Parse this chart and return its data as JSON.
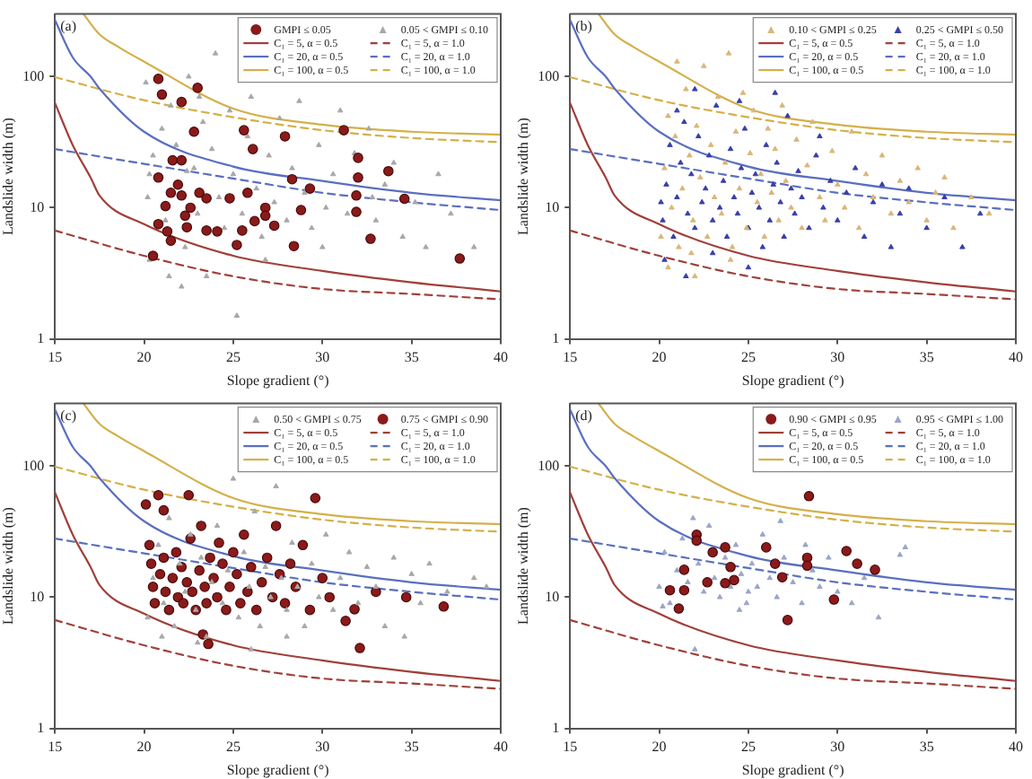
{
  "chart_data": [
    {
      "type": "scatter",
      "annotations": [
        "(a)"
      ],
      "xlabel": "Slope gradient (°)",
      "ylabel": "Landslide width (m)",
      "xlim": [
        15,
        40
      ],
      "xticks": [
        15,
        20,
        25,
        30,
        35,
        40
      ],
      "ylim": [
        1,
        300
      ],
      "yticks": [
        1,
        10,
        100
      ],
      "log": "y",
      "grid": false,
      "legend": "top right",
      "series": [
        {
          "name": "GMPI ≤ 0.05",
          "color": "#8b1a1a",
          "marker": "circle",
          "x": [
            20.8,
            21.0,
            22.1,
            23.0,
            22.8,
            25.6,
            26.1,
            27.9,
            31.2,
            32.0,
            33.7,
            34.6,
            32.0,
            31.9,
            31.9,
            32.7,
            37.7,
            28.3,
            29.3,
            28.8,
            28.4,
            27.3,
            26.8,
            26.8,
            26.2,
            25.8,
            24.8,
            25.5,
            25.2,
            24.1,
            23.5,
            23.1,
            23.5,
            22.6,
            22.3,
            22.1,
            21.9,
            21.6,
            22.1,
            20.8,
            21.2,
            20.8,
            21.3,
            21.5,
            20.5,
            22.4,
            21.5
          ],
          "values": [
            96,
            73,
            64,
            82,
            38,
            39,
            28,
            35,
            39,
            24,
            19,
            11.7,
            17,
            12.4,
            9.3,
            5.8,
            4.1,
            16.5,
            14,
            9.6,
            5.1,
            7.3,
            10,
            8.7,
            7.9,
            13,
            11.8,
            6.7,
            5.2,
            6.6,
            6.7,
            13,
            11.8,
            10,
            8.7,
            12.4,
            15,
            23,
            23,
            17,
            10.3,
            7.5,
            6.6,
            5.6,
            4.3,
            7.1,
            13
          ]
        },
        {
          "name": "0.05 < GMPI ≤ 0.10",
          "color": "#a8a8a8",
          "marker": "triangle",
          "x": [
            20.2,
            20.5,
            20.3,
            21,
            21.2,
            21.5,
            21.8,
            22.4,
            22.3,
            22.5,
            22.8,
            23,
            23.3,
            23.5,
            23.8,
            24,
            24.2,
            24.5,
            24.8,
            25,
            25.2,
            25.5,
            25.8,
            26,
            26.3,
            26.6,
            27,
            27.3,
            27.6,
            28,
            28.3,
            28.7,
            29,
            29.4,
            29.8,
            30.2,
            30.6,
            31,
            31.4,
            31.8,
            32.8,
            32.6,
            33,
            33.5,
            34,
            34.5,
            35.2,
            35.8,
            36.5,
            37.2,
            38.5,
            20.3,
            21.4,
            22.1,
            23.1,
            20.1,
            26.8,
            30
          ],
          "values": [
            12,
            25,
            18,
            40,
            8,
            60,
            30,
            19,
            5,
            100,
            20,
            9,
            45,
            3,
            28,
            150,
            12,
            7,
            55,
            18,
            1.5,
            9,
            35,
            70,
            14,
            6,
            25,
            11,
            48,
            8,
            20,
            65,
            13,
            7,
            30,
            10,
            18,
            55,
            9,
            26,
            12,
            40,
            8,
            15,
            22,
            6,
            11,
            5,
            18,
            9,
            5,
            4,
            3,
            2.5,
            70,
            90,
            4,
            5
          ]
        },
        {
          "type": "line",
          "name": "C₁ = 5, α = 0.5",
          "color": "#a0403a",
          "line_style": "solid",
          "marker": "none",
          "x": [
            15,
            16,
            17,
            17.5,
            20,
            25,
            30,
            35,
            40
          ],
          "values": [
            63,
            30,
            17,
            12.4,
            7.5,
            4.3,
            3.3,
            2.7,
            2.3
          ]
        },
        {
          "type": "line",
          "name": "C₁ = 5, α = 1.0",
          "color": "#a0403a",
          "line_style": "dashed",
          "marker": "none",
          "x": [
            15,
            20,
            25,
            30,
            35,
            40
          ],
          "values": [
            6.7,
            4.3,
            3.0,
            2.4,
            2.2,
            2.0
          ]
        },
        {
          "type": "line",
          "name": "C₁ = 20, α = 0.5",
          "color": "#5a6fc0",
          "line_style": "solid",
          "marker": "none",
          "x": [
            15,
            16,
            17,
            17.5,
            20,
            25,
            30,
            35,
            40
          ],
          "values": [
            270,
            140,
            100,
            81,
            38,
            20.6,
            16,
            13,
            11.4
          ]
        },
        {
          "type": "line",
          "name": "C₁ = 20, α = 1.0",
          "color": "#5a6fc0",
          "line_style": "dashed",
          "marker": "none",
          "x": [
            15,
            20,
            25,
            30,
            35,
            40
          ],
          "values": [
            28,
            21.6,
            16.7,
            13,
            11,
            9.6
          ]
        },
        {
          "type": "line",
          "name": "C₁ = 100, α = 0.5",
          "color": "#d4b04a",
          "line_style": "solid",
          "marker": "none",
          "x": [
            16.6,
            17.5,
            18.5,
            20,
            25,
            30,
            35,
            40
          ],
          "values": [
            300,
            210,
            170,
            130,
            57,
            43,
            38,
            36
          ]
        },
        {
          "type": "line",
          "name": "C₁ = 100, α = 1.0",
          "color": "#d4b04a",
          "line_style": "dashed",
          "marker": "none",
          "x": [
            15,
            20,
            25,
            30,
            35,
            40
          ],
          "values": [
            99,
            66,
            49,
            39,
            34,
            31.6
          ]
        }
      ]
    },
    {
      "type": "scatter",
      "annotations": [
        "(b)"
      ],
      "xlabel": "Slope gradient (°)",
      "ylabel": "Landslide width (m)",
      "xlim": [
        15,
        40
      ],
      "xticks": [
        15,
        20,
        25,
        30,
        35,
        40
      ],
      "ylim": [
        1,
        300
      ],
      "yticks": [
        1,
        10,
        100
      ],
      "log": "y",
      "grid": false,
      "legend": "top right",
      "series": [
        {
          "name": "0.10 < GMPI ≤ 0.25",
          "color": "#d9b77a",
          "marker": "triangle",
          "x": [
            20.1,
            20.3,
            20.5,
            20.7,
            20.9,
            21.1,
            21.3,
            21.5,
            21.7,
            21.9,
            22.1,
            22.3,
            22.5,
            22.7,
            22.9,
            23.1,
            23.3,
            23.5,
            23.7,
            23.9,
            24.1,
            24.3,
            24.5,
            24.7,
            24.9,
            25.1,
            25.3,
            25.5,
            25.7,
            25.9,
            26.1,
            26.3,
            26.5,
            26.7,
            26.9,
            27.1,
            27.4,
            27.7,
            28,
            28.3,
            28.6,
            29,
            29.3,
            29.7,
            30,
            30.4,
            30.8,
            31.2,
            31.6,
            32,
            32.5,
            33,
            33.5,
            34,
            34.5,
            35,
            35.5,
            36,
            36.5,
            37.5,
            38.5,
            20.5,
            22,
            24,
            21,
            21.8
          ],
          "values": [
            6,
            20,
            50,
            10,
            35,
            5,
            14,
            80,
            25,
            8,
            42,
            17,
            120,
            6,
            30,
            12,
            70,
            9,
            22,
            150,
            5,
            38,
            14,
            75,
            7,
            26,
            55,
            11,
            18,
            6,
            40,
            13,
            28,
            8,
            60,
            16,
            10,
            33,
            7,
            21,
            45,
            12,
            8,
            27,
            15,
            10,
            38,
            7,
            18,
            12,
            25,
            9,
            16,
            11,
            20,
            8,
            13,
            17,
            7,
            12,
            9,
            3.5,
            3,
            4,
            130,
            4.5
          ]
        },
        {
          "name": "0.25 < GMPI ≤ 0.50",
          "color": "#3a3fa8",
          "marker": "triangle",
          "x": [
            20.2,
            20.4,
            20.6,
            20.8,
            21,
            21.2,
            21.4,
            21.6,
            21.8,
            22,
            22.2,
            22.4,
            22.6,
            22.8,
            23,
            23.2,
            23.4,
            23.6,
            23.8,
            24,
            24.2,
            24.4,
            24.6,
            24.8,
            25,
            25.2,
            25.4,
            25.6,
            25.8,
            26,
            26.2,
            26.4,
            26.6,
            26.8,
            27,
            27.2,
            27.4,
            27.6,
            27.8,
            28,
            28.4,
            28.8,
            29.2,
            29.6,
            30,
            30.5,
            31,
            31.5,
            32,
            32.5,
            33,
            33.5,
            34,
            35,
            36,
            37,
            38,
            20.3,
            21.5,
            23,
            25,
            22,
            24.5,
            26.5,
            21,
            29,
            20.1
          ],
          "values": [
            8,
            15,
            30,
            6,
            12,
            22,
            45,
            9,
            18,
            7,
            35,
            11,
            14,
            25,
            8,
            60,
            10,
            16,
            6,
            28,
            12,
            9,
            20,
            40,
            7,
            13,
            18,
            10,
            5,
            30,
            8,
            15,
            22,
            11,
            6,
            50,
            14,
            9,
            19,
            12,
            7,
            25,
            10,
            16,
            8,
            13,
            20,
            6,
            11,
            15,
            5,
            9,
            14,
            7,
            12,
            5,
            9,
            4,
            3,
            4.5,
            3.5,
            80,
            65,
            75,
            55,
            35,
            11
          ]
        },
        {
          "type": "line",
          "name": "C₁ = 5, α = 0.5",
          "color": "#a0403a",
          "line_style": "solid",
          "marker": "none",
          "x": [
            15,
            16,
            17,
            17.5,
            20,
            25,
            30,
            35,
            40
          ],
          "values": [
            63,
            30,
            17,
            12.4,
            7.5,
            4.3,
            3.3,
            2.7,
            2.3
          ]
        },
        {
          "type": "line",
          "name": "C₁ = 5, α = 1.0",
          "color": "#a0403a",
          "line_style": "dashed",
          "marker": "none",
          "x": [
            15,
            20,
            25,
            30,
            35,
            40
          ],
          "values": [
            6.7,
            4.3,
            3.0,
            2.4,
            2.2,
            2.0
          ]
        },
        {
          "type": "line",
          "name": "C₁ = 20, α = 0.5",
          "color": "#5a6fc0",
          "line_style": "solid",
          "marker": "none",
          "x": [
            15,
            16,
            17,
            17.5,
            20,
            25,
            30,
            35,
            40
          ],
          "values": [
            270,
            140,
            100,
            81,
            38,
            20.6,
            16,
            13,
            11.4
          ]
        },
        {
          "type": "line",
          "name": "C₁ = 20, α = 1.0",
          "color": "#5a6fc0",
          "line_style": "dashed",
          "marker": "none",
          "x": [
            15,
            20,
            25,
            30,
            35,
            40
          ],
          "values": [
            28,
            21.6,
            16.7,
            13,
            11,
            9.6
          ]
        },
        {
          "type": "line",
          "name": "C₁ = 100, α = 0.5",
          "color": "#d4b04a",
          "line_style": "solid",
          "marker": "none",
          "x": [
            16.6,
            17.5,
            18.5,
            20,
            25,
            30,
            35,
            40
          ],
          "values": [
            300,
            210,
            170,
            130,
            57,
            43,
            38,
            36
          ]
        },
        {
          "type": "line",
          "name": "C₁ = 100, α = 1.0",
          "color": "#d4b04a",
          "line_style": "dashed",
          "marker": "none",
          "x": [
            15,
            20,
            25,
            30,
            35,
            40
          ],
          "values": [
            99,
            66,
            49,
            39,
            34,
            31.6
          ]
        }
      ]
    },
    {
      "type": "scatter",
      "annotations": [
        "(c)"
      ],
      "xlabel": "Slope gradient (°)",
      "ylabel": "Landslide width (m)",
      "xlim": [
        15,
        40
      ],
      "xticks": [
        15,
        20,
        25,
        30,
        35,
        40
      ],
      "ylim": [
        1,
        300
      ],
      "yticks": [
        1,
        10,
        100
      ],
      "log": "y",
      "grid": false,
      "legend": "top right",
      "series": [
        {
          "name": "0.50 < GMPI ≤ 0.75",
          "color": "#a8a8a8",
          "marker": "triangle",
          "x": [
            20.2,
            20.5,
            20.8,
            21.1,
            21.4,
            21.7,
            22,
            22.3,
            22.6,
            22.9,
            23.2,
            23.5,
            23.8,
            24.1,
            24.4,
            24.7,
            25,
            25.3,
            25.6,
            25.9,
            26.2,
            26.5,
            26.8,
            27.1,
            27.4,
            27.7,
            28,
            28.3,
            28.6,
            29,
            29.4,
            29.8,
            30.2,
            30.6,
            31,
            31.5,
            32,
            32.5,
            33,
            33.5,
            34,
            34.6,
            35,
            35.5,
            36,
            37,
            38.5,
            39.2,
            21,
            23,
            26,
            28
          ],
          "values": [
            7,
            14,
            25,
            9,
            40,
            6,
            18,
            11,
            30,
            8,
            20,
            5,
            13,
            35,
            9,
            16,
            80,
            7,
            22,
            12,
            45,
            6,
            17,
            10,
            70,
            14,
            8,
            26,
            12,
            6,
            18,
            10,
            30,
            8,
            14,
            22,
            9,
            17,
            12,
            6,
            20,
            5,
            15,
            9,
            18,
            11,
            14,
            12,
            5,
            4.5,
            4,
            5
          ]
        },
        {
          "name": "0.75 < GMPI ≤ 0.90",
          "color": "#8b1a1a",
          "marker": "circle",
          "x": [
            20.1,
            20.8,
            21.1,
            22.5,
            20.3,
            20.4,
            20.5,
            20.6,
            20.9,
            21.1,
            21.2,
            21.4,
            21.6,
            21.8,
            21.9,
            22.1,
            22.2,
            22.4,
            22.6,
            22.7,
            22.9,
            23.1,
            23.2,
            23.4,
            23.5,
            23.7,
            23.9,
            24.1,
            24.2,
            24.4,
            24.6,
            24.8,
            25,
            25.2,
            25.4,
            25.6,
            25.8,
            26,
            26.3,
            26.6,
            26.9,
            27.2,
            27.4,
            27.6,
            27.9,
            28.2,
            28.5,
            28.9,
            29.3,
            29.6,
            30,
            30.4,
            31.3,
            31.8,
            32.1,
            33,
            34.7,
            36.8,
            23.6,
            23.3
          ],
          "values": [
            51,
            60,
            46,
            60,
            25,
            18,
            12,
            9,
            15,
            20,
            11,
            8,
            14,
            22,
            10,
            17,
            9,
            13,
            28,
            11,
            8,
            16,
            35,
            12,
            9,
            20,
            14,
            10,
            26,
            18,
            8,
            12,
            22,
            15,
            9,
            30,
            11,
            17,
            8,
            13,
            20,
            10,
            35,
            15,
            9,
            18,
            12,
            25,
            8,
            57,
            14,
            10,
            6.6,
            8.1,
            4.1,
            11,
            10,
            8.5,
            4.4,
            5.2
          ]
        },
        {
          "type": "line",
          "name": "C₁ = 5, α = 0.5",
          "color": "#a0403a",
          "line_style": "solid",
          "marker": "none",
          "x": [
            15,
            16,
            17,
            17.5,
            20,
            25,
            30,
            35,
            40
          ],
          "values": [
            63,
            30,
            17,
            12.4,
            7.5,
            4.3,
            3.3,
            2.7,
            2.3
          ]
        },
        {
          "type": "line",
          "name": "C₁ = 5, α = 1.0",
          "color": "#a0403a",
          "line_style": "dashed",
          "marker": "none",
          "x": [
            15,
            20,
            25,
            30,
            35,
            40
          ],
          "values": [
            6.7,
            4.3,
            3.0,
            2.4,
            2.2,
            2.0
          ]
        },
        {
          "type": "line",
          "name": "C₁ = 20, α = 0.5",
          "color": "#5a6fc0",
          "line_style": "solid",
          "marker": "none",
          "x": [
            15,
            16,
            17,
            17.5,
            20,
            25,
            30,
            35,
            40
          ],
          "values": [
            270,
            140,
            100,
            81,
            38,
            20.6,
            16,
            13,
            11.4
          ]
        },
        {
          "type": "line",
          "name": "C₁ = 20, α = 1.0",
          "color": "#5a6fc0",
          "line_style": "dashed",
          "marker": "none",
          "x": [
            15,
            20,
            25,
            30,
            35,
            40
          ],
          "values": [
            28,
            21.6,
            16.7,
            13,
            11,
            9.6
          ]
        },
        {
          "type": "line",
          "name": "C₁ = 100, α = 0.5",
          "color": "#d4b04a",
          "line_style": "solid",
          "marker": "none",
          "x": [
            16.6,
            17.5,
            18.5,
            20,
            25,
            30,
            35,
            40
          ],
          "values": [
            300,
            210,
            170,
            130,
            57,
            43,
            38,
            36
          ]
        },
        {
          "type": "line",
          "name": "C₁ = 100, α = 1.0",
          "color": "#d4b04a",
          "line_style": "dashed",
          "marker": "none",
          "x": [
            15,
            20,
            25,
            30,
            35,
            40
          ],
          "values": [
            99,
            66,
            49,
            39,
            34,
            31.6
          ]
        }
      ]
    },
    {
      "type": "scatter",
      "annotations": [
        "(d)"
      ],
      "xlabel": "Slope gradient (°)",
      "ylabel": "Landslide width (m)",
      "xlim": [
        15,
        40
      ],
      "xticks": [
        15,
        20,
        25,
        30,
        35,
        40
      ],
      "ylim": [
        1,
        300
      ],
      "yticks": [
        1,
        10,
        100
      ],
      "log": "y",
      "grid": false,
      "legend": "top right",
      "series": [
        {
          "name": "0.90 < GMPI ≤ 0.95",
          "color": "#8b1a1a",
          "marker": "circle",
          "x": [
            28.4,
            22.1,
            22.1,
            23.7,
            23.0,
            26.0,
            26.5,
            28.3,
            28.3,
            30.5,
            31.1,
            32.1,
            24.0,
            21.4,
            21.4,
            20.6,
            21.1,
            22.7,
            24.2,
            23.7,
            26.9,
            27.2,
            29.8
          ],
          "values": [
            59,
            30,
            27,
            24,
            22,
            24,
            18,
            20,
            17.4,
            22.5,
            18,
            16.2,
            17,
            16.2,
            11.3,
            11.3,
            8.2,
            13,
            13.5,
            12.8,
            14.2,
            6.7,
            9.6
          ]
        },
        {
          "name": "0.95 < GMPI ≤ 1.00",
          "color": "#9aa6c8",
          "marker": "triangle",
          "x": [
            20,
            20.3,
            20.6,
            21,
            21.3,
            21.6,
            21.9,
            22.2,
            22.5,
            22.8,
            23.1,
            23.4,
            23.7,
            24,
            24.3,
            24.6,
            24.9,
            25.2,
            25.5,
            25.8,
            26.2,
            26.6,
            27,
            27.5,
            28,
            28.2,
            28.6,
            29,
            29.5,
            30,
            30.8,
            31.5,
            32.3,
            33.5,
            33.8,
            22,
            24.5,
            25,
            20.2,
            26.8
          ],
          "values": [
            12,
            22,
            9,
            16,
            28,
            13,
            40,
            18,
            11,
            35,
            14,
            10,
            20,
            12,
            25,
            15,
            9,
            18,
            12,
            30,
            14,
            10,
            20,
            13,
            9,
            25,
            16,
            12,
            20,
            11,
            9,
            14,
            7,
            21,
            24,
            4,
            8,
            11,
            8.5,
            38
          ]
        },
        {
          "type": "line",
          "name": "C₁ = 5, α = 0.5",
          "color": "#a0403a",
          "line_style": "solid",
          "marker": "none",
          "x": [
            15,
            16,
            17,
            17.5,
            20,
            25,
            30,
            35,
            40
          ],
          "values": [
            63,
            30,
            17,
            12.4,
            7.5,
            4.3,
            3.3,
            2.7,
            2.3
          ]
        },
        {
          "type": "line",
          "name": "C₁ = 5, α = 1.0",
          "color": "#a0403a",
          "line_style": "dashed",
          "marker": "none",
          "x": [
            15,
            20,
            25,
            30,
            35,
            40
          ],
          "values": [
            6.7,
            4.3,
            3.0,
            2.4,
            2.2,
            2.0
          ]
        },
        {
          "type": "line",
          "name": "C₁ = 20, α = 0.5",
          "color": "#5a6fc0",
          "line_style": "solid",
          "marker": "none",
          "x": [
            15,
            16,
            17,
            17.5,
            20,
            25,
            30,
            35,
            40
          ],
          "values": [
            270,
            140,
            100,
            81,
            38,
            20.6,
            16,
            13,
            11.4
          ]
        },
        {
          "type": "line",
          "name": "C₁ = 20, α = 1.0",
          "color": "#5a6fc0",
          "line_style": "dashed",
          "marker": "none",
          "x": [
            15,
            20,
            25,
            30,
            35,
            40
          ],
          "values": [
            28,
            21.6,
            16.7,
            13,
            11,
            9.6
          ]
        },
        {
          "type": "line",
          "name": "C₁ = 100, α = 0.5",
          "color": "#d4b04a",
          "line_style": "solid",
          "marker": "none",
          "x": [
            16.6,
            17.5,
            18.5,
            20,
            25,
            30,
            35,
            40
          ],
          "values": [
            300,
            210,
            170,
            130,
            57,
            43,
            38,
            36
          ]
        },
        {
          "type": "line",
          "name": "C₁ = 100, α = 1.0",
          "color": "#d4b04a",
          "line_style": "dashed",
          "marker": "none",
          "x": [
            15,
            20,
            25,
            30,
            35,
            40
          ],
          "values": [
            99,
            66,
            49,
            39,
            34,
            31.6
          ]
        }
      ]
    }
  ]
}
